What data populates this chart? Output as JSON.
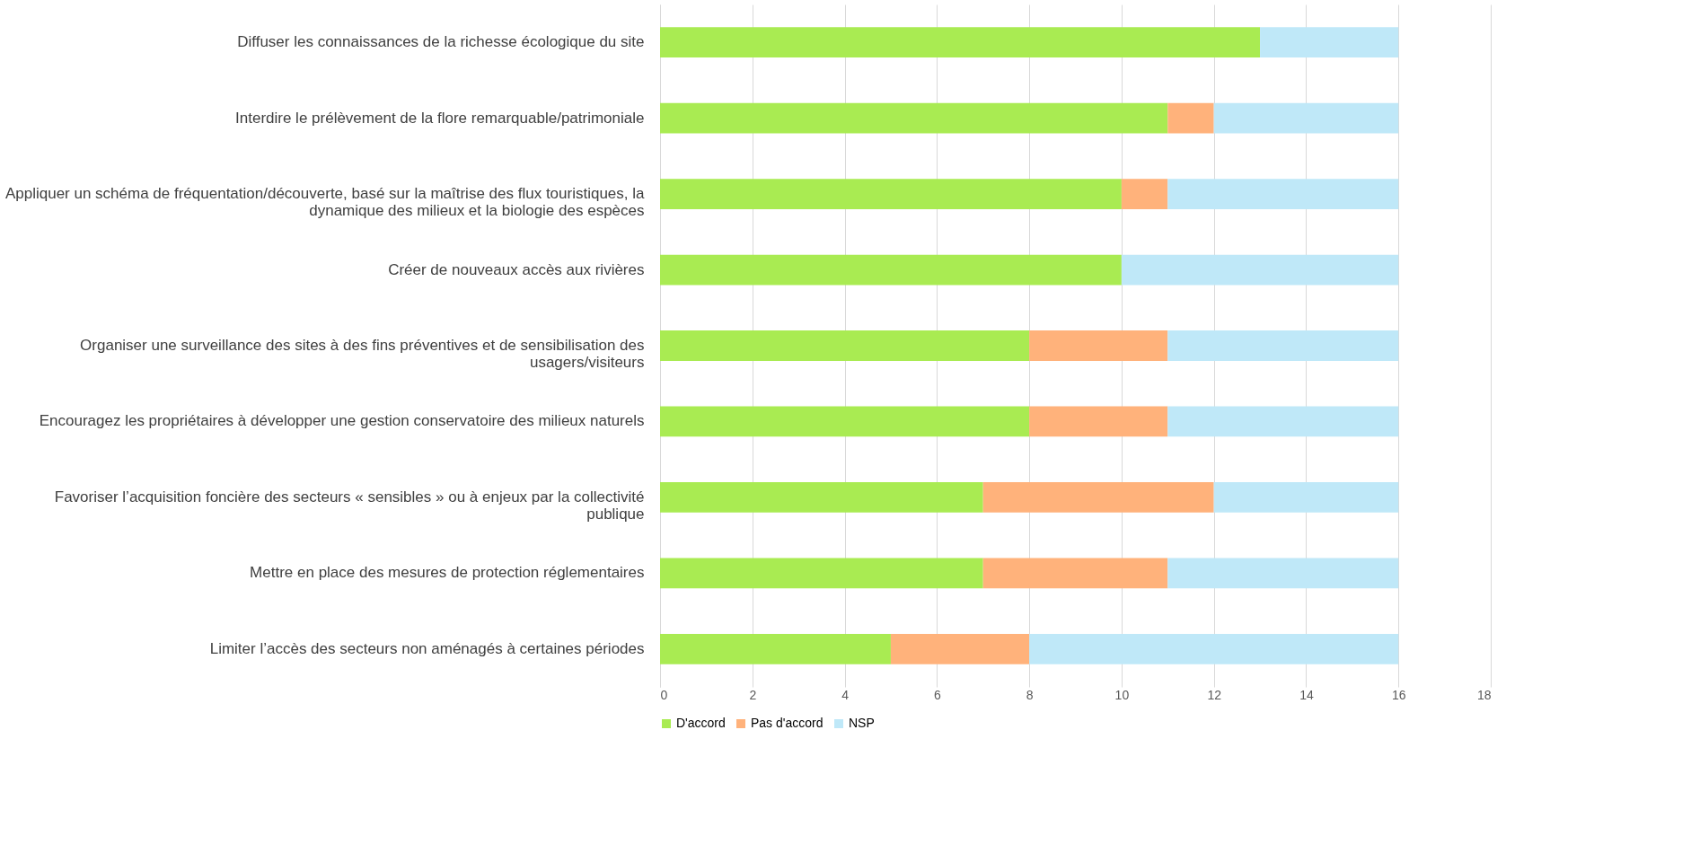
{
  "chart_data": {
    "type": "bar",
    "orientation": "horizontal",
    "stacked": true,
    "categories": [
      "Diffuser les connaissances de la richesse écologique du site",
      "Interdire le prélèvement de la flore remarquable/patrimoniale",
      "Appliquer un schéma de fréquentation/découverte, basé sur la maîtrise des flux touristiques, la dynamique des milieux et la biologie des espèces",
      "Créer de nouveaux accès aux rivières",
      "Organiser une surveillance des sites à des fins préventives et de sensibilisation des usagers/visiteurs",
      "Encouragez les propriétaires à développer une gestion conservatoire des milieux naturels",
      "Favoriser l’acquisition foncière des secteurs « sensibles » ou à enjeux par la collectivité publique",
      "Mettre en place des mesures de protection réglementaires",
      "Limiter l’accès des secteurs non aménagés à certaines périodes"
    ],
    "series": [
      {
        "name": "D'accord",
        "color": "#a9eb52",
        "values": [
          13,
          11,
          10,
          10,
          8,
          8,
          7,
          7,
          5
        ]
      },
      {
        "name": "Pas d'accord",
        "color": "#ffb27b",
        "values": [
          0,
          1,
          1,
          0,
          3,
          3,
          5,
          4,
          3
        ]
      },
      {
        "name": "NSP",
        "color": "#bfe8f8",
        "values": [
          3,
          4,
          5,
          6,
          5,
          5,
          4,
          5,
          8
        ]
      }
    ],
    "xlim": [
      0,
      18
    ],
    "xticks": [
      0,
      2,
      4,
      6,
      8,
      10,
      12,
      14,
      16,
      18
    ],
    "grid": "x",
    "legend": "bottom"
  }
}
